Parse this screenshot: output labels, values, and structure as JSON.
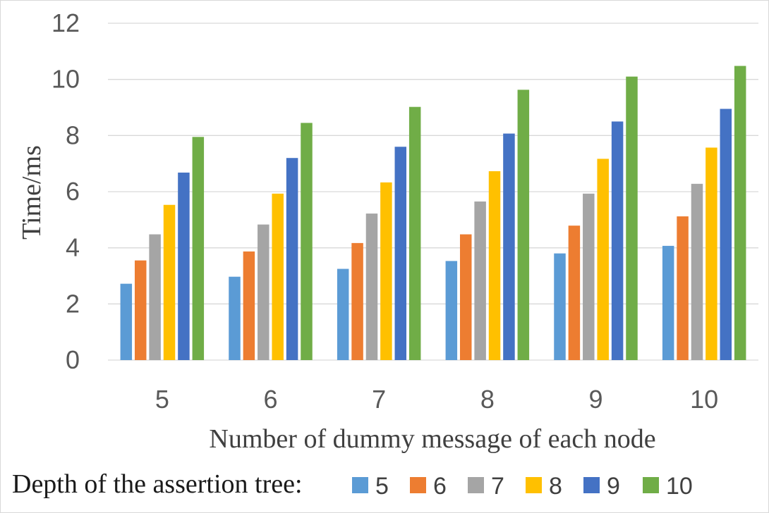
{
  "chart_data": {
    "type": "bar",
    "categories": [
      "5",
      "6",
      "7",
      "8",
      "9",
      "10"
    ],
    "series": [
      {
        "name": "5",
        "color": "#5B9BD5",
        "values": [
          2.72,
          2.97,
          3.25,
          3.53,
          3.8,
          4.07
        ]
      },
      {
        "name": "6",
        "color": "#ED7D31",
        "values": [
          3.55,
          3.87,
          4.17,
          4.48,
          4.79,
          5.12
        ]
      },
      {
        "name": "7",
        "color": "#A5A5A5",
        "values": [
          4.48,
          4.83,
          5.22,
          5.65,
          5.93,
          6.28
        ]
      },
      {
        "name": "8",
        "color": "#FFC000",
        "values": [
          5.53,
          5.93,
          6.33,
          6.73,
          7.17,
          7.57
        ]
      },
      {
        "name": "9",
        "color": "#4472C4",
        "values": [
          6.68,
          7.2,
          7.6,
          8.07,
          8.5,
          8.95
        ]
      },
      {
        "name": "10",
        "color": "#70AD47",
        "values": [
          7.95,
          8.45,
          9.02,
          9.63,
          10.1,
          10.48
        ]
      }
    ],
    "title": "",
    "xlabel": "Number of dummy message of each node",
    "ylabel": "Time/ms",
    "ylim": [
      0,
      12
    ],
    "yticks": [
      "0",
      "2",
      "4",
      "6",
      "8",
      "10",
      "12"
    ],
    "grid": true,
    "legend": {
      "title": "Depth of the assertion tree:",
      "position": "bottom"
    }
  }
}
